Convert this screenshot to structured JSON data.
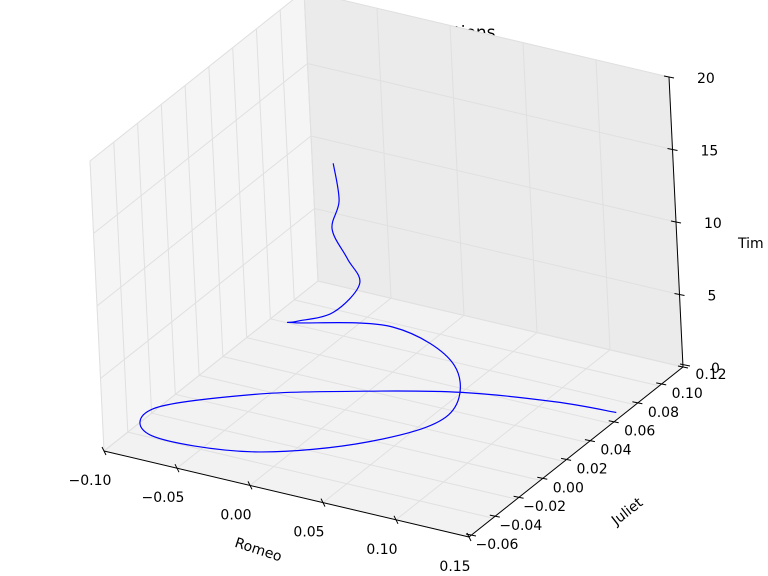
{
  "chart_data": {
    "type": "line",
    "projection": "3d",
    "title": "Romeo and Juliet relations",
    "xlabel": "Romeo",
    "ylabel": "Juliet",
    "zlabel": "Tim",
    "xlim": [
      -0.1,
      0.15
    ],
    "ylim": [
      -0.06,
      0.12
    ],
    "zlim": [
      0,
      20
    ],
    "xticks": [
      "−0.10",
      "−0.05",
      "0.00",
      "0.05",
      "0.10",
      "0.15"
    ],
    "yticks": [
      "−0.06",
      "−0.04",
      "−0.02",
      "0.00",
      "0.02",
      "0.04",
      "0.06",
      "0.08",
      "0.10",
      "0.12"
    ],
    "zticks": [
      "0",
      "5",
      "10",
      "15",
      "20"
    ],
    "grid": true,
    "series": [
      {
        "color": "#0000ff",
        "x": [
          0.145,
          0.112,
          0.06,
          0.01,
          -0.045,
          -0.09,
          -0.075,
          -0.01,
          0.05,
          0.08,
          0.06,
          0.01,
          -0.04,
          -0.03,
          -0.005,
          0.01,
          0.005,
          -0.003,
          0.002,
          0.0
        ],
        "y": [
          0.07,
          0.06,
          0.045,
          0.025,
          0.0,
          -0.03,
          -0.05,
          -0.045,
          -0.02,
          0.01,
          0.04,
          0.05,
          0.03,
          0.02,
          0.02,
          0.025,
          0.022,
          0.02,
          0.021,
          0.02
        ],
        "z": [
          0.0,
          0.6,
          1.0,
          1.2,
          1.3,
          1.2,
          1.0,
          1.1,
          1.6,
          2.2,
          3.2,
          4.0,
          4.4,
          5.4,
          6.6,
          8.6,
          10.4,
          12.4,
          14.4,
          17.0
        ]
      }
    ]
  }
}
